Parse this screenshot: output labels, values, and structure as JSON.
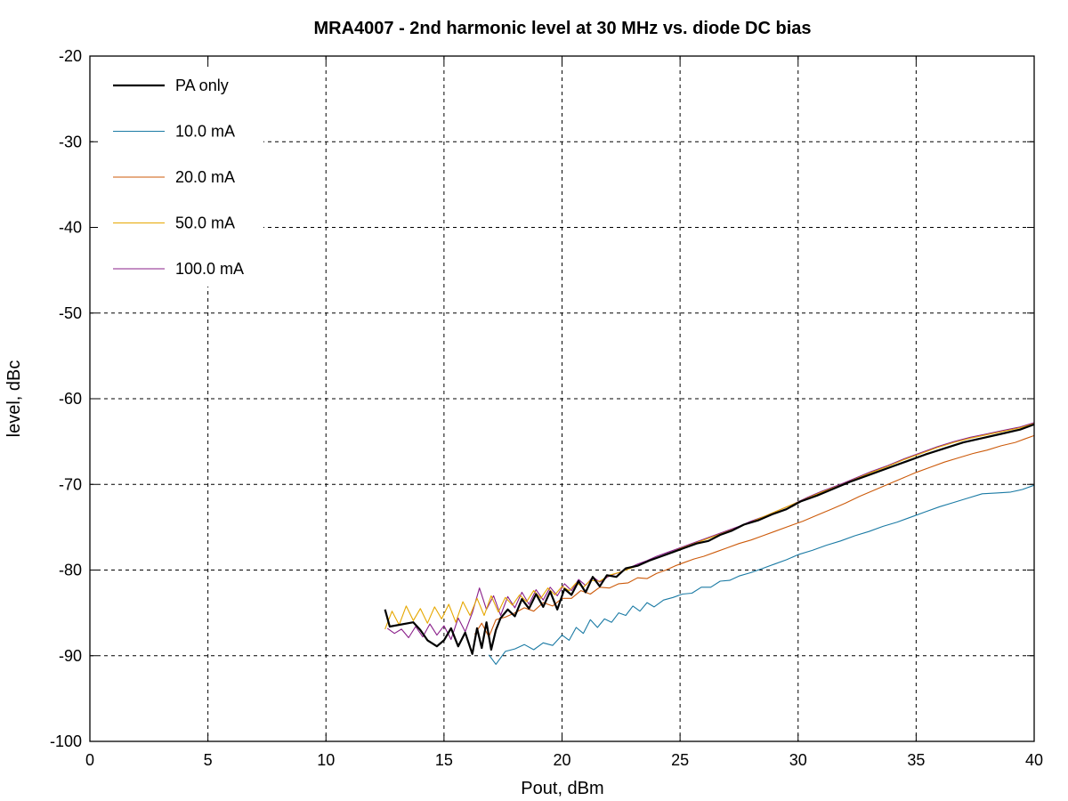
{
  "chart_data": {
    "type": "line",
    "title": "MRA4007 - 2nd harmonic level at 30 MHz vs. diode DC bias",
    "xlabel": "Pout, dBm",
    "ylabel": "level, dBc",
    "xlim": [
      0,
      40
    ],
    "ylim": [
      -100,
      -20
    ],
    "xticks": [
      "0",
      "5",
      "10",
      "15",
      "20",
      "25",
      "30",
      "35",
      "40"
    ],
    "yticks": [
      "-20",
      "-30",
      "-40",
      "-50",
      "-60",
      "-70",
      "-80",
      "-90",
      "-100"
    ],
    "grid": true,
    "legend_position": "top-left",
    "series": [
      {
        "name": "PA only",
        "color": "#000000",
        "width": 2.2,
        "points": [
          [
            12.5,
            -84.6
          ],
          [
            12.7,
            -86.6
          ],
          [
            13.7,
            -86.1
          ],
          [
            14.0,
            -87.0
          ],
          [
            14.3,
            -88.2
          ],
          [
            14.7,
            -88.9
          ],
          [
            15.0,
            -88.2
          ],
          [
            15.3,
            -86.8
          ],
          [
            15.6,
            -88.9
          ],
          [
            15.9,
            -87.3
          ],
          [
            16.2,
            -89.8
          ],
          [
            16.4,
            -86.8
          ],
          [
            16.6,
            -89.1
          ],
          [
            16.8,
            -86.1
          ],
          [
            17.0,
            -89.3
          ],
          [
            17.2,
            -87.0
          ],
          [
            17.4,
            -85.6
          ],
          [
            17.7,
            -84.6
          ],
          [
            18.0,
            -85.4
          ],
          [
            18.3,
            -83.4
          ],
          [
            18.6,
            -84.5
          ],
          [
            18.9,
            -82.8
          ],
          [
            19.2,
            -84.3
          ],
          [
            19.5,
            -82.5
          ],
          [
            19.8,
            -84.6
          ],
          [
            20.1,
            -82.2
          ],
          [
            20.4,
            -82.9
          ],
          [
            20.7,
            -81.3
          ],
          [
            21.0,
            -82.6
          ],
          [
            21.3,
            -80.8
          ],
          [
            21.6,
            -81.9
          ],
          [
            21.9,
            -80.6
          ],
          [
            22.3,
            -80.8
          ],
          [
            22.7,
            -79.8
          ],
          [
            23.2,
            -79.5
          ],
          [
            23.7,
            -78.9
          ],
          [
            24.2,
            -78.4
          ],
          [
            24.7,
            -77.9
          ],
          [
            25.2,
            -77.4
          ],
          [
            25.7,
            -76.9
          ],
          [
            26.2,
            -76.6
          ],
          [
            26.7,
            -75.9
          ],
          [
            27.2,
            -75.4
          ],
          [
            27.7,
            -74.7
          ],
          [
            28.3,
            -74.2
          ],
          [
            28.9,
            -73.5
          ],
          [
            29.5,
            -72.9
          ],
          [
            30.1,
            -72.0
          ],
          [
            30.8,
            -71.3
          ],
          [
            31.5,
            -70.5
          ],
          [
            32.2,
            -69.7
          ],
          [
            33.0,
            -68.9
          ],
          [
            33.8,
            -68.1
          ],
          [
            34.6,
            -67.3
          ],
          [
            35.4,
            -66.5
          ],
          [
            36.2,
            -65.8
          ],
          [
            37.0,
            -65.1
          ],
          [
            37.8,
            -64.6
          ],
          [
            38.6,
            -64.1
          ],
          [
            39.4,
            -63.6
          ],
          [
            40.0,
            -63.0
          ]
        ]
      },
      {
        "name": "10.0 mA",
        "color": "#1a7aa4",
        "width": 1.1,
        "points": [
          [
            16.9,
            -89.9
          ],
          [
            17.2,
            -91.0
          ],
          [
            17.6,
            -89.5
          ],
          [
            18.0,
            -89.2
          ],
          [
            18.4,
            -88.7
          ],
          [
            18.8,
            -89.3
          ],
          [
            19.2,
            -88.5
          ],
          [
            19.6,
            -88.8
          ],
          [
            20.0,
            -87.6
          ],
          [
            20.3,
            -88.2
          ],
          [
            20.6,
            -86.7
          ],
          [
            20.9,
            -87.4
          ],
          [
            21.2,
            -85.8
          ],
          [
            21.5,
            -86.7
          ],
          [
            21.8,
            -85.7
          ],
          [
            22.1,
            -86.1
          ],
          [
            22.4,
            -85.0
          ],
          [
            22.7,
            -85.3
          ],
          [
            23.0,
            -84.2
          ],
          [
            23.3,
            -84.8
          ],
          [
            23.6,
            -83.8
          ],
          [
            23.9,
            -84.3
          ],
          [
            24.3,
            -83.5
          ],
          [
            24.7,
            -83.2
          ],
          [
            25.1,
            -82.8
          ],
          [
            25.5,
            -82.7
          ],
          [
            25.9,
            -82.0
          ],
          [
            26.3,
            -82.0
          ],
          [
            26.7,
            -81.3
          ],
          [
            27.1,
            -81.2
          ],
          [
            27.5,
            -80.7
          ],
          [
            28.0,
            -80.3
          ],
          [
            28.5,
            -79.8
          ],
          [
            29.0,
            -79.3
          ],
          [
            29.5,
            -78.8
          ],
          [
            30.0,
            -78.2
          ],
          [
            30.6,
            -77.7
          ],
          [
            31.2,
            -77.1
          ],
          [
            31.8,
            -76.6
          ],
          [
            32.4,
            -76.0
          ],
          [
            33.0,
            -75.5
          ],
          [
            33.6,
            -74.9
          ],
          [
            34.2,
            -74.4
          ],
          [
            34.8,
            -73.8
          ],
          [
            35.4,
            -73.2
          ],
          [
            36.0,
            -72.6
          ],
          [
            36.6,
            -72.1
          ],
          [
            37.2,
            -71.6
          ],
          [
            37.8,
            -71.1
          ],
          [
            38.4,
            -71.0
          ],
          [
            39.0,
            -70.9
          ],
          [
            39.5,
            -70.6
          ],
          [
            40.0,
            -70.1
          ]
        ]
      },
      {
        "name": "20.0 mA",
        "color": "#cc5a0a",
        "width": 1.1,
        "points": [
          [
            16.3,
            -87.5
          ],
          [
            16.6,
            -86.2
          ],
          [
            16.9,
            -87.8
          ],
          [
            17.2,
            -85.8
          ],
          [
            17.6,
            -85.5
          ],
          [
            18.0,
            -85.0
          ],
          [
            18.4,
            -84.4
          ],
          [
            18.8,
            -84.8
          ],
          [
            19.2,
            -83.8
          ],
          [
            19.6,
            -84.2
          ],
          [
            20.0,
            -83.3
          ],
          [
            20.4,
            -83.3
          ],
          [
            20.8,
            -82.4
          ],
          [
            21.2,
            -82.8
          ],
          [
            21.6,
            -82.0
          ],
          [
            22.0,
            -82.1
          ],
          [
            22.4,
            -81.6
          ],
          [
            22.8,
            -81.5
          ],
          [
            23.2,
            -80.9
          ],
          [
            23.6,
            -81.0
          ],
          [
            24.0,
            -80.4
          ],
          [
            24.4,
            -80.0
          ],
          [
            24.8,
            -79.5
          ],
          [
            25.2,
            -79.1
          ],
          [
            25.6,
            -78.7
          ],
          [
            26.0,
            -78.4
          ],
          [
            26.5,
            -77.9
          ],
          [
            27.0,
            -77.4
          ],
          [
            27.5,
            -76.9
          ],
          [
            28.0,
            -76.5
          ],
          [
            28.5,
            -76.0
          ],
          [
            29.0,
            -75.5
          ],
          [
            29.6,
            -74.9
          ],
          [
            30.2,
            -74.3
          ],
          [
            30.8,
            -73.6
          ],
          [
            31.4,
            -72.9
          ],
          [
            32.0,
            -72.2
          ],
          [
            32.6,
            -71.4
          ],
          [
            33.2,
            -70.7
          ],
          [
            33.8,
            -70.0
          ],
          [
            34.4,
            -69.3
          ],
          [
            35.0,
            -68.6
          ],
          [
            35.6,
            -68.0
          ],
          [
            36.2,
            -67.4
          ],
          [
            36.8,
            -66.9
          ],
          [
            37.4,
            -66.4
          ],
          [
            38.0,
            -66.0
          ],
          [
            38.6,
            -65.5
          ],
          [
            39.2,
            -65.1
          ],
          [
            39.6,
            -64.7
          ],
          [
            40.0,
            -64.3
          ]
        ]
      },
      {
        "name": "50.0 mA",
        "color": "#e6a700",
        "width": 1.1,
        "points": [
          [
            12.5,
            -86.9
          ],
          [
            12.8,
            -84.8
          ],
          [
            13.1,
            -86.4
          ],
          [
            13.4,
            -84.2
          ],
          [
            13.7,
            -85.9
          ],
          [
            14.0,
            -84.5
          ],
          [
            14.3,
            -86.2
          ],
          [
            14.6,
            -84.3
          ],
          [
            14.9,
            -85.7
          ],
          [
            15.2,
            -84.0
          ],
          [
            15.5,
            -86.1
          ],
          [
            15.8,
            -83.7
          ],
          [
            16.1,
            -85.3
          ],
          [
            16.4,
            -83.3
          ],
          [
            16.7,
            -85.3
          ],
          [
            17.0,
            -83.0
          ],
          [
            17.3,
            -84.9
          ],
          [
            17.6,
            -83.2
          ],
          [
            17.9,
            -84.1
          ],
          [
            18.2,
            -82.9
          ],
          [
            18.5,
            -83.7
          ],
          [
            18.8,
            -82.4
          ],
          [
            19.1,
            -83.3
          ],
          [
            19.4,
            -82.1
          ],
          [
            19.7,
            -82.9
          ],
          [
            20.0,
            -81.9
          ],
          [
            20.3,
            -82.4
          ],
          [
            20.6,
            -81.5
          ],
          [
            20.9,
            -82.0
          ],
          [
            21.2,
            -81.2
          ],
          [
            21.6,
            -81.3
          ],
          [
            22.0,
            -80.6
          ],
          [
            22.4,
            -80.3
          ],
          [
            22.8,
            -79.9
          ],
          [
            23.2,
            -79.5
          ],
          [
            23.6,
            -79.0
          ],
          [
            24.0,
            -78.6
          ],
          [
            24.5,
            -78.1
          ],
          [
            25.0,
            -77.5
          ],
          [
            25.5,
            -77.0
          ],
          [
            26.0,
            -76.5
          ],
          [
            26.5,
            -76.0
          ],
          [
            27.0,
            -75.5
          ],
          [
            27.5,
            -75.0
          ],
          [
            28.0,
            -74.4
          ],
          [
            28.6,
            -73.7
          ],
          [
            29.2,
            -73.0
          ],
          [
            29.8,
            -72.3
          ],
          [
            30.4,
            -71.6
          ],
          [
            31.0,
            -70.9
          ],
          [
            31.7,
            -70.2
          ],
          [
            32.4,
            -69.4
          ],
          [
            33.1,
            -68.6
          ],
          [
            33.8,
            -67.9
          ],
          [
            34.5,
            -67.1
          ],
          [
            35.2,
            -66.4
          ],
          [
            35.9,
            -65.7
          ],
          [
            36.6,
            -65.1
          ],
          [
            37.3,
            -64.6
          ],
          [
            38.0,
            -64.2
          ],
          [
            38.7,
            -63.8
          ],
          [
            39.4,
            -63.4
          ],
          [
            40.0,
            -62.9
          ]
        ]
      },
      {
        "name": "100.0 mA",
        "color": "#8a1f8a",
        "width": 1.1,
        "points": [
          [
            12.6,
            -86.8
          ],
          [
            12.9,
            -87.4
          ],
          [
            13.2,
            -86.9
          ],
          [
            13.5,
            -87.9
          ],
          [
            13.8,
            -86.6
          ],
          [
            14.1,
            -87.8
          ],
          [
            14.4,
            -86.3
          ],
          [
            14.7,
            -87.6
          ],
          [
            15.0,
            -86.5
          ],
          [
            15.3,
            -88.1
          ],
          [
            15.6,
            -85.6
          ],
          [
            15.9,
            -87.2
          ],
          [
            16.2,
            -85.0
          ],
          [
            16.5,
            -82.1
          ],
          [
            16.8,
            -84.6
          ],
          [
            17.1,
            -83.0
          ],
          [
            17.4,
            -85.3
          ],
          [
            17.7,
            -83.1
          ],
          [
            18.0,
            -84.4
          ],
          [
            18.3,
            -82.6
          ],
          [
            18.6,
            -84.0
          ],
          [
            18.9,
            -82.3
          ],
          [
            19.2,
            -83.5
          ],
          [
            19.5,
            -82.0
          ],
          [
            19.8,
            -83.0
          ],
          [
            20.1,
            -81.6
          ],
          [
            20.4,
            -82.4
          ],
          [
            20.7,
            -81.1
          ],
          [
            21.0,
            -81.8
          ],
          [
            21.3,
            -80.8
          ],
          [
            21.6,
            -81.4
          ],
          [
            22.0,
            -80.7
          ],
          [
            22.4,
            -80.3
          ],
          [
            22.8,
            -79.8
          ],
          [
            23.2,
            -79.3
          ],
          [
            23.6,
            -78.9
          ],
          [
            24.0,
            -78.4
          ],
          [
            24.5,
            -77.9
          ],
          [
            25.0,
            -77.4
          ],
          [
            25.5,
            -76.9
          ],
          [
            26.0,
            -76.4
          ],
          [
            26.5,
            -75.9
          ],
          [
            27.0,
            -75.4
          ],
          [
            27.5,
            -74.9
          ],
          [
            28.0,
            -74.3
          ],
          [
            28.6,
            -73.7
          ],
          [
            29.2,
            -73.0
          ],
          [
            29.8,
            -72.3
          ],
          [
            30.4,
            -71.5
          ],
          [
            31.0,
            -70.8
          ],
          [
            31.7,
            -70.1
          ],
          [
            32.4,
            -69.3
          ],
          [
            33.1,
            -68.5
          ],
          [
            33.8,
            -67.8
          ],
          [
            34.5,
            -67.0
          ],
          [
            35.2,
            -66.3
          ],
          [
            35.9,
            -65.6
          ],
          [
            36.6,
            -65.0
          ],
          [
            37.3,
            -64.5
          ],
          [
            38.0,
            -64.1
          ],
          [
            38.7,
            -63.7
          ],
          [
            39.4,
            -63.3
          ],
          [
            40.0,
            -62.8
          ]
        ]
      }
    ]
  }
}
